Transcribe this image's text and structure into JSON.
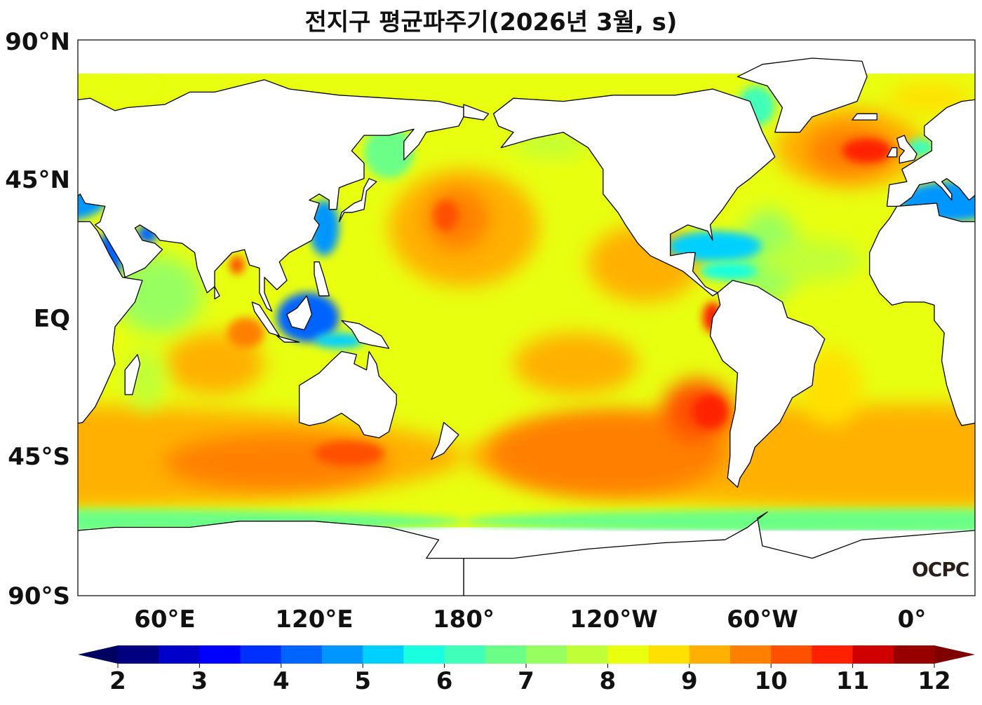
{
  "title": "전지구 평균파주기(2026년 3월, s)",
  "lat_labels": [
    "90°N",
    "45°N",
    "EQ",
    "45°S",
    "90°S"
  ],
  "lon_labels": [
    "60°E",
    "120°E",
    "180°",
    "120°W",
    "60°W",
    "0°"
  ],
  "colorbar": {
    "ticks": [
      "2",
      "3",
      "4",
      "5",
      "6",
      "7",
      "8",
      "9",
      "10",
      "11",
      "12"
    ],
    "min": 2,
    "max": 12,
    "step": 0.5,
    "colors": [
      "#000080",
      "#0000c8",
      "#0000ff",
      "#0030ff",
      "#0064ff",
      "#0096ff",
      "#00d0ff",
      "#19ffe0",
      "#40ffb8",
      "#6cff88",
      "#98ff60",
      "#c0ff38",
      "#e8ff10",
      "#ffe000",
      "#ffb000",
      "#ff8000",
      "#ff5000",
      "#ff2000",
      "#d00000",
      "#980000"
    ],
    "under_color": "#000060",
    "over_color": "#800000"
  },
  "logo": "OCPC"
}
